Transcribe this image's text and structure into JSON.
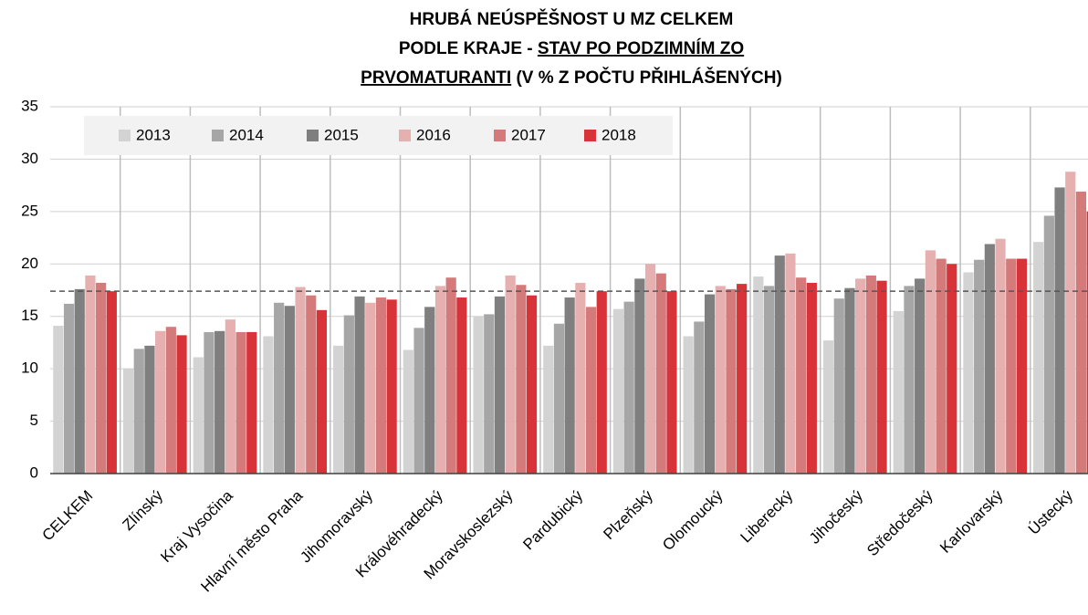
{
  "chart_data": {
    "type": "bar",
    "title": [
      [
        {
          "text": "HRUBÁ NEÚSPĚŠNOST U MZ CELKEM"
        }
      ],
      [
        {
          "text": "PODLE KRAJE - "
        },
        {
          "text": "STAV PO PODZIMNÍM ZO",
          "underline": true
        }
      ],
      [
        {
          "text": "PRVOMATURANTI",
          "underline": true
        },
        {
          "text": " (V % Z POČTU PŘIHLÁŠENÝCH)"
        }
      ]
    ],
    "categories": [
      "CELKEM",
      "Zlínský",
      "Kraj Vysočina",
      "Hlavní město Praha",
      "Jihomoravský",
      "Královéhradecký",
      "Moravskoslezský",
      "Pardubický",
      "Plzeňský",
      "Olomoucký",
      "Liberecký",
      "Jihočeský",
      "Středočeský",
      "Karlovarský",
      "Ústecký"
    ],
    "series": [
      {
        "name": "2013",
        "color": "#d3d3d3",
        "values": [
          14.1,
          10.0,
          11.1,
          13.1,
          12.2,
          11.8,
          15.0,
          12.2,
          15.7,
          13.1,
          18.8,
          12.7,
          15.5,
          19.2,
          22.1
        ]
      },
      {
        "name": "2014",
        "color": "#a6a6a6",
        "values": [
          16.2,
          11.9,
          13.5,
          16.3,
          15.1,
          13.9,
          15.2,
          14.3,
          16.4,
          14.5,
          17.9,
          16.7,
          17.9,
          20.4,
          24.6
        ]
      },
      {
        "name": "2015",
        "color": "#7f7f7f",
        "values": [
          17.6,
          12.2,
          13.6,
          16.0,
          16.9,
          15.9,
          16.9,
          16.8,
          18.6,
          17.1,
          20.8,
          17.7,
          18.6,
          21.9,
          27.3
        ]
      },
      {
        "name": "2016",
        "color": "#e6b0b0",
        "values": [
          18.9,
          13.6,
          14.7,
          17.8,
          16.3,
          17.9,
          18.9,
          18.2,
          20.0,
          17.9,
          21.0,
          18.6,
          21.3,
          22.4,
          28.8
        ]
      },
      {
        "name": "2017",
        "color": "#d47a7a",
        "values": [
          18.2,
          14.0,
          13.5,
          17.0,
          16.8,
          18.7,
          18.0,
          15.9,
          19.1,
          17.6,
          18.7,
          18.9,
          20.5,
          20.5,
          26.9
        ]
      },
      {
        "name": "2018",
        "color": "#d9333a",
        "values": [
          17.4,
          13.2,
          13.5,
          15.6,
          16.6,
          16.8,
          17.0,
          17.4,
          17.4,
          18.1,
          18.2,
          18.4,
          20.0,
          20.5,
          25.0
        ]
      }
    ],
    "reference_line": 17.4,
    "ylim": [
      0,
      35
    ],
    "yticks": [
      0,
      5,
      10,
      15,
      20,
      25,
      30,
      35
    ],
    "grid": true,
    "legend": "top-left"
  }
}
